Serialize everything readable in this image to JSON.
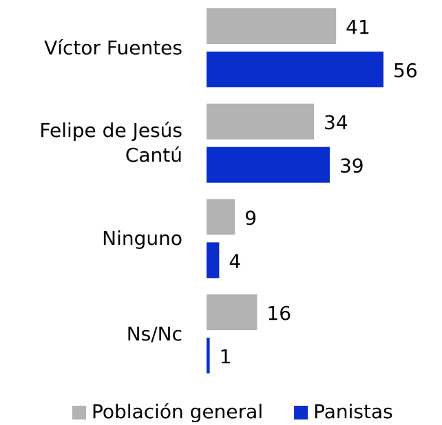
{
  "chart_data": {
    "type": "barh",
    "categories": [
      "Víctor Fuentes",
      "Felipe de Jesús Cantú",
      "Ninguno",
      "Ns/Nc"
    ],
    "series": [
      {
        "name": "Población general",
        "color": "#b3b3b3",
        "values": [
          41,
          34,
          9,
          16
        ]
      },
      {
        "name": "Panistas",
        "color": "#0a2ecc",
        "values": [
          56,
          39,
          4,
          1
        ]
      }
    ],
    "legend": "bottom"
  }
}
